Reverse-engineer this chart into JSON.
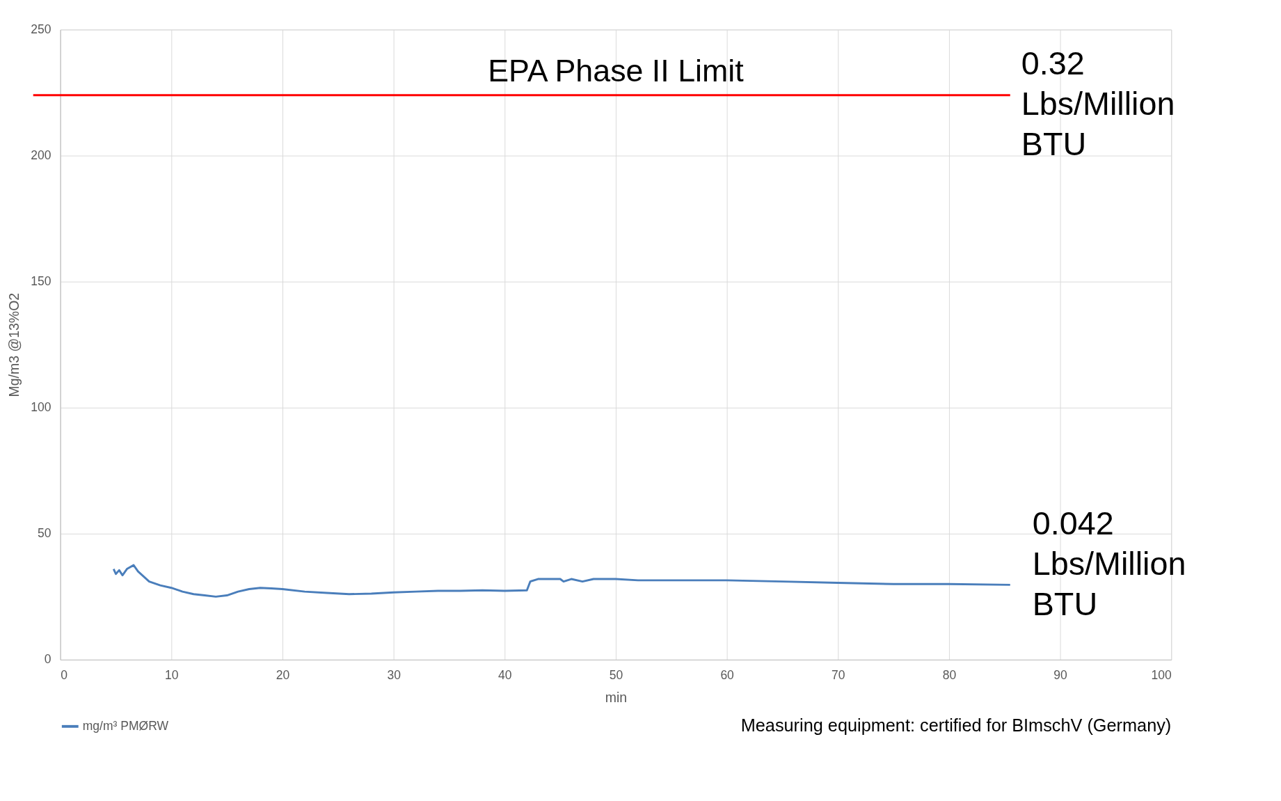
{
  "chart_data": {
    "type": "line",
    "xlabel": "min",
    "ylabel": "Mg/m3 @13%O2",
    "xlim": [
      0,
      100
    ],
    "xticks": [
      0,
      10,
      20,
      30,
      40,
      50,
      60,
      70,
      80,
      90,
      100
    ],
    "ylim": [
      0,
      250
    ],
    "yticks": [
      0,
      50,
      100,
      150,
      200,
      250
    ],
    "grid": true,
    "legend": "bottom",
    "x": [
      4.8,
      5.0,
      5.3,
      5.6,
      6.0,
      6.6,
      7.0,
      7.5,
      8,
      9,
      10,
      11,
      12,
      13,
      14,
      15,
      16,
      17,
      18,
      19,
      20,
      22,
      24,
      26,
      28,
      30,
      32,
      34,
      36,
      38,
      40,
      42,
      42.3,
      43,
      45,
      45.3,
      46,
      47,
      48,
      50,
      52,
      55,
      60,
      65,
      70,
      75,
      80,
      85.5
    ],
    "series": [
      {
        "name": "mg/m³ PMØRW",
        "color": "#4a7ebb",
        "values": [
          36,
          34,
          35.5,
          33.5,
          36,
          37.5,
          35,
          33,
          31,
          29.5,
          28.5,
          27,
          26,
          25.5,
          25,
          25.5,
          27,
          28,
          28.5,
          28.3,
          28,
          27,
          26.5,
          26,
          26.2,
          26.7,
          27,
          27.3,
          27.3,
          27.5,
          27.3,
          27.5,
          31,
          32,
          32,
          31,
          32,
          31,
          32,
          32,
          31.5,
          31.5,
          31.5,
          31,
          30.5,
          30,
          30,
          29.7
        ]
      }
    ],
    "ref_lines": [
      {
        "axis": "y",
        "value": 224,
        "label": "EPA Phase II Limit",
        "color": "#ff0000"
      }
    ],
    "annotations": [
      "0.32\nLbs/Million\nBTU",
      "0.042\nLbs/Million\nBTU",
      "Measuring equipment: certified for BImschV (Germany)"
    ]
  }
}
